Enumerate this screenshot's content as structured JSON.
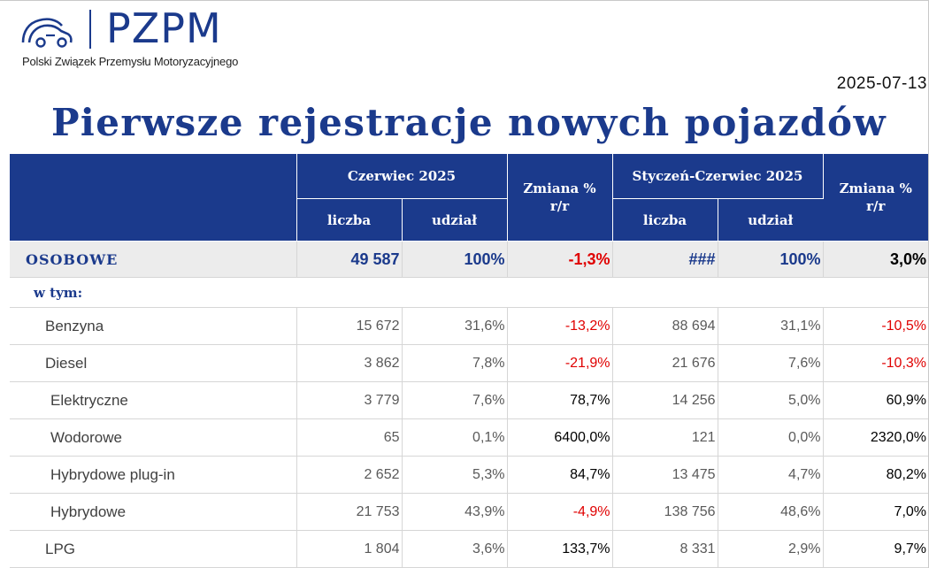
{
  "header": {
    "logo_text": "PZPM",
    "logo_subtitle": "Polski Związek Przemysłu Motoryzacyjnego",
    "date": "2025-07-13",
    "title": "Pierwsze rejestracje nowych pojazdów"
  },
  "table": {
    "group_month": "Czerwiec 2025",
    "group_ytd": "Styczeń-Czerwiec 2025",
    "change_label_line1": "Zmiana %",
    "change_label_line2": "r/r",
    "col_count": "liczba",
    "col_share": "udział",
    "total": {
      "label": "OSOBOWE",
      "month_count": "49 587",
      "month_share": "100%",
      "month_change": "-1,3%",
      "ytd_count": "###",
      "ytd_share": "100%",
      "ytd_change": "3,0%"
    },
    "subheader": "w tym:",
    "rows": [
      {
        "label": "Benzyna",
        "month_count": "15 672",
        "month_share": "31,6%",
        "month_change": "-13,2%",
        "ytd_count": "88 694",
        "ytd_share": "31,1%",
        "ytd_change": "-10,5%"
      },
      {
        "label": "Diesel",
        "month_count": "3 862",
        "month_share": "7,8%",
        "month_change": "-21,9%",
        "ytd_count": "21 676",
        "ytd_share": "7,6%",
        "ytd_change": "-10,3%"
      },
      {
        "label": "Elektryczne",
        "month_count": "3 779",
        "month_share": "7,6%",
        "month_change": "78,7%",
        "ytd_count": "14 256",
        "ytd_share": "5,0%",
        "ytd_change": "60,9%"
      },
      {
        "label": "Wodorowe",
        "month_count": "65",
        "month_share": "0,1%",
        "month_change": "6400,0%",
        "ytd_count": "121",
        "ytd_share": "0,0%",
        "ytd_change": "2320,0%"
      },
      {
        "label": "Hybrydowe plug-in",
        "month_count": "2 652",
        "month_share": "5,3%",
        "month_change": "84,7%",
        "ytd_count": "13 475",
        "ytd_share": "4,7%",
        "ytd_change": "80,2%"
      },
      {
        "label": "Hybrydowe",
        "month_count": "21 753",
        "month_share": "43,9%",
        "month_change": "-4,9%",
        "ytd_count": "138 756",
        "ytd_share": "48,6%",
        "ytd_change": "7,0%"
      },
      {
        "label": "LPG",
        "month_count": "1 804",
        "month_share": "3,6%",
        "month_change": "133,7%",
        "ytd_count": "8 331",
        "ytd_share": "2,9%",
        "ytd_change": "9,7%"
      }
    ]
  },
  "colors": {
    "brand_blue": "#1b3a8c",
    "negative_red": "#e00000",
    "total_row_bg": "#ececec"
  }
}
